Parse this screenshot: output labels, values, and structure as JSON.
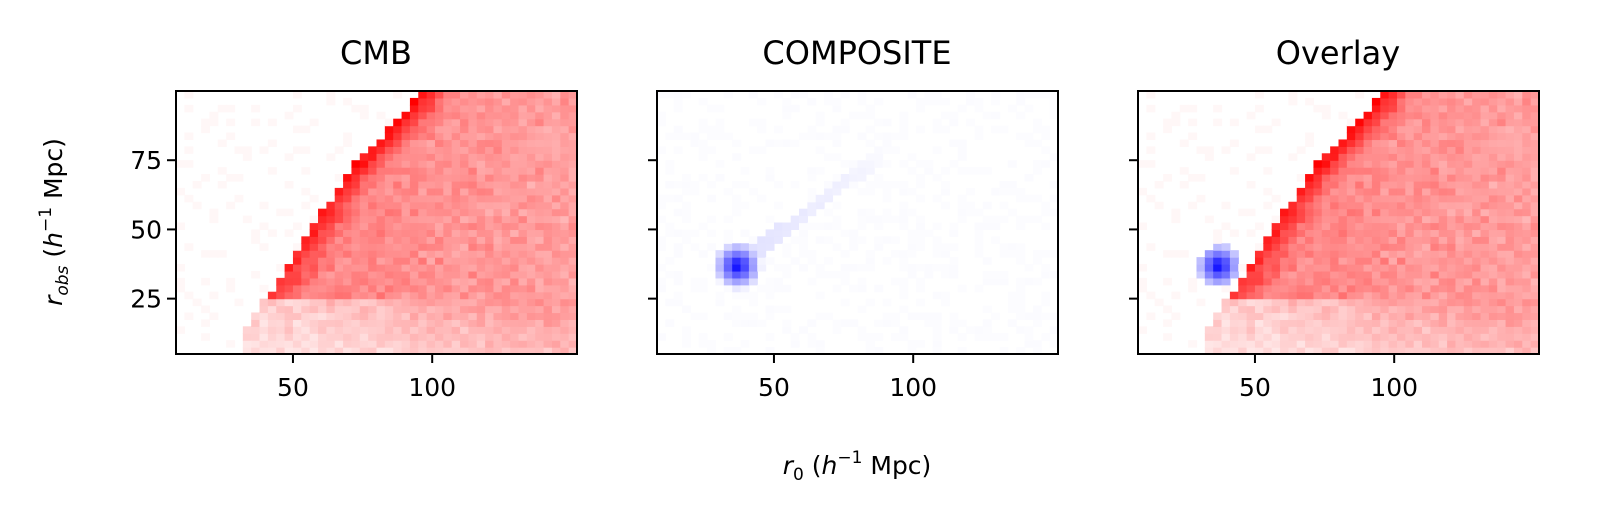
{
  "figure": {
    "xlabel": {
      "r": "r",
      "sub": "0",
      "unit_open": " (",
      "h": "h",
      "exp": "−1",
      "unit_close": " Mpc)"
    },
    "ylabel": {
      "r": "r",
      "sub": "obs",
      "unit_open": " (",
      "h": "h",
      "exp": "−1",
      "unit_close": " Mpc)"
    }
  },
  "chart_data": [
    {
      "type": "heatmap",
      "title": "CMB",
      "colormap": "white-to-red",
      "color": "#ff0000",
      "xlim": [
        8,
        152
      ],
      "ylim": [
        5,
        100
      ],
      "xticks": [
        50,
        100
      ],
      "yticks": [
        25,
        50,
        75
      ],
      "grid": false,
      "features": [
        {
          "kind": "lower-edge",
          "x": [
            32,
            45,
            70,
            98
          ],
          "y": [
            12,
            30,
            70,
            100
          ]
        },
        {
          "kind": "ridge",
          "x": [
            40,
            60,
            80,
            97
          ],
          "y": [
            32,
            50,
            75,
            100
          ],
          "intensity": 0.9
        }
      ]
    },
    {
      "type": "heatmap",
      "title": "COMPOSITE",
      "colormap": "white-to-blue",
      "color": "#0000ff",
      "xlim": [
        8,
        152
      ],
      "ylim": [
        5,
        100
      ],
      "xticks": [
        50,
        100
      ],
      "yticks": [
        25,
        50,
        75
      ],
      "grid": false,
      "features": [
        {
          "kind": "peak",
          "x": 37,
          "y": 37,
          "intensity": 1.0
        },
        {
          "kind": "ridge",
          "x": [
            37,
            60,
            85
          ],
          "y": [
            37,
            55,
            75
          ],
          "intensity": 0.08
        }
      ]
    },
    {
      "type": "heatmap",
      "title": "Overlay",
      "colormap": "red-and-blue overlay",
      "color": "#ff0000",
      "xlim": [
        8,
        152
      ],
      "ylim": [
        5,
        100
      ],
      "xticks": [
        50,
        100
      ],
      "yticks": [
        25,
        50,
        75
      ],
      "grid": false,
      "features": [
        {
          "kind": "overlay of CMB and COMPOSITE"
        }
      ]
    }
  ]
}
